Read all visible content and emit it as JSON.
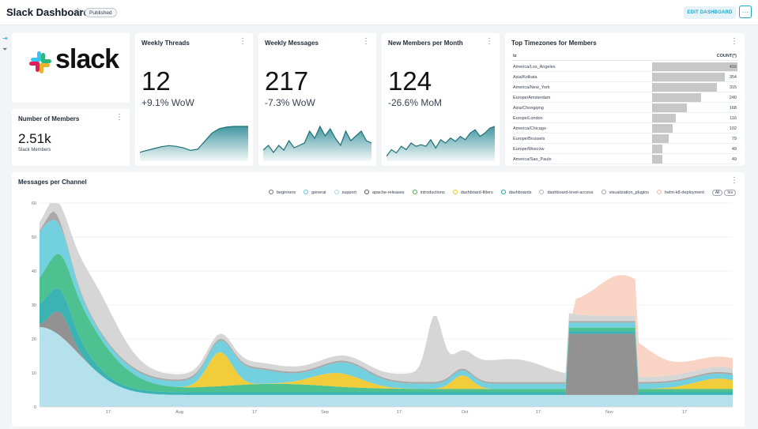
{
  "header": {
    "title": "Slack Dashboard",
    "status_badge": "Published",
    "edit_label": "EDIT DASHBOARD",
    "more_label": "···"
  },
  "logo": {
    "wordmark": "slack"
  },
  "members": {
    "title": "Number of Members",
    "value": "2.51k",
    "subtitle": "Slack Members"
  },
  "kpis": [
    {
      "title": "Weekly Threads",
      "value": "12",
      "delta": "+9.1% WoW",
      "trend": [
        2,
        2.5,
        3,
        3.5,
        3.8,
        3.6,
        3.2,
        2.5,
        2.8,
        5,
        7.2,
        8.4,
        8.8,
        9,
        9,
        9
      ]
    },
    {
      "title": "Weekly Messages",
      "value": "217",
      "delta": "-7.3% WoW",
      "trend": [
        2,
        3,
        1.5,
        3,
        2,
        4,
        2.5,
        3,
        3.5,
        6,
        4.5,
        7,
        5,
        6.5,
        4.5,
        3,
        6,
        4,
        5,
        6,
        4,
        3.5
      ]
    },
    {
      "title": "New Members per Month",
      "value": "124",
      "delta": "-26.6% MoM",
      "trend": [
        1,
        3,
        2,
        4,
        3,
        5,
        4,
        4.5,
        4,
        6,
        3.5,
        6,
        5,
        6.5,
        5.5,
        7,
        6,
        8,
        9,
        7,
        8,
        9.5,
        10
      ]
    }
  ],
  "timezones": {
    "title": "Top Timezones for Members",
    "col_tz": "tz",
    "col_count": "COUNT(*)",
    "rows": [
      {
        "tz": "America/Los_Angeles",
        "count": 416
      },
      {
        "tz": "Asia/Kolkata",
        "count": 354
      },
      {
        "tz": "America/New_York",
        "count": 315
      },
      {
        "tz": "Europe/Amsterdam",
        "count": 240
      },
      {
        "tz": "Asia/Chongqing",
        "count": 168
      },
      {
        "tz": "Europe/London",
        "count": 116
      },
      {
        "tz": "America/Chicago",
        "count": 102
      },
      {
        "tz": "Europe/Brussels",
        "count": 79
      },
      {
        "tz": "Europe/Moscow",
        "count": 49
      },
      {
        "tz": "America/Sao_Paulo",
        "count": 49
      }
    ]
  },
  "messages_chart": {
    "title": "Messages per Channel",
    "all_label": "All",
    "inv_label": "Inv"
  },
  "chart_data": {
    "type": "area",
    "stacked": true,
    "ylim": [
      0,
      60
    ],
    "yticks": [
      0,
      10,
      20,
      30,
      40,
      50,
      60
    ],
    "xtick_labels": [
      "17",
      "Aug",
      "17",
      "Sep",
      "17",
      "Oct",
      "17",
      "Nov",
      "17"
    ],
    "legend_position": "top-right",
    "series": [
      {
        "name": "beginners",
        "color": "#7f7f7f",
        "values": [
          14,
          10,
          6,
          4,
          2,
          0,
          0,
          0,
          0,
          0,
          0,
          0,
          0,
          0,
          0,
          0,
          0,
          0,
          0,
          0,
          0,
          0,
          0,
          0,
          0,
          0,
          0,
          0,
          0,
          0,
          0,
          0,
          0,
          0,
          0,
          0,
          0,
          0,
          0,
          0,
          0,
          0,
          0,
          0,
          0,
          0,
          0,
          0,
          0,
          0,
          0,
          0,
          0,
          0,
          0,
          0,
          0,
          0,
          0,
          0,
          0,
          0,
          0,
          0,
          0,
          0,
          0,
          0,
          0,
          0,
          0,
          0,
          0,
          0,
          0,
          0,
          0,
          0,
          0,
          0,
          0,
          0,
          0,
          0,
          0,
          0,
          0,
          0,
          0,
          0,
          0,
          0,
          0,
          0,
          0,
          0,
          0,
          0,
          0,
          0,
          0,
          0,
          0,
          0,
          0,
          0,
          0,
          0,
          0,
          0,
          0,
          0,
          0,
          0,
          0,
          0,
          0,
          0,
          0,
          0,
          0,
          0,
          0,
          0,
          0,
          0,
          0,
          0,
          0,
          0,
          0,
          0,
          0,
          0,
          0,
          0,
          0,
          0,
          0,
          0,
          0,
          0,
          0,
          0,
          0,
          0,
          0,
          0,
          0,
          0,
          0,
          0,
          0,
          0,
          0,
          0,
          0,
          0,
          0,
          0,
          0,
          0,
          0,
          0,
          0,
          0,
          0,
          0,
          0,
          0,
          0,
          0,
          0,
          0,
          0,
          0,
          22,
          22,
          20,
          18,
          15,
          12,
          0,
          0,
          0,
          0,
          0,
          0,
          0,
          0,
          0,
          0,
          0,
          0,
          0,
          0,
          0,
          0,
          0,
          0,
          0,
          0,
          0,
          0,
          0,
          0,
          0,
          0,
          0,
          0,
          0,
          0,
          0,
          0,
          0,
          0,
          0,
          0,
          0,
          0,
          0,
          0,
          0,
          0,
          0,
          0,
          0,
          0,
          0,
          0,
          0
        ]
      },
      {
        "name": "general",
        "color": "#5ac8d8",
        "values": [
          18,
          14,
          12,
          11,
          10,
          9,
          9,
          8.5,
          8,
          7.5,
          7,
          7,
          6.5,
          6,
          5.5,
          5,
          4.5,
          4,
          3.8,
          3.5,
          3.2,
          3,
          3,
          2.8,
          2.6,
          2.5,
          2.4,
          2.3,
          2.2,
          2.1,
          2,
          2,
          2,
          2,
          2,
          2,
          2,
          2,
          2,
          2,
          2,
          2,
          2,
          2,
          2,
          2,
          2,
          2,
          2,
          2,
          2,
          2,
          2,
          2,
          2,
          2,
          2,
          2,
          2,
          2,
          2,
          2,
          2,
          2,
          2,
          2,
          2,
          2,
          2,
          2,
          2,
          2,
          2,
          2,
          2,
          2,
          2,
          2,
          2,
          2,
          2,
          2,
          2,
          2,
          2,
          2,
          2,
          2,
          2,
          2,
          2,
          2,
          2,
          2,
          2,
          2,
          2,
          2,
          2,
          2,
          2,
          2,
          2,
          2,
          2,
          2,
          2,
          2,
          2,
          2,
          2,
          2,
          2,
          2,
          2,
          2,
          2,
          2,
          2,
          2,
          2,
          2,
          2,
          2,
          2,
          2,
          2,
          2,
          2,
          2,
          2,
          2,
          2,
          2,
          2,
          2,
          2,
          2,
          2,
          2,
          2,
          2,
          2,
          2,
          2,
          2,
          2,
          2,
          2,
          2,
          2,
          2,
          2,
          2,
          2,
          2,
          2,
          2,
          2,
          2,
          2,
          2,
          2,
          2,
          2,
          2,
          2,
          2,
          2,
          2,
          2,
          2,
          2,
          2,
          2,
          2,
          2,
          2,
          2,
          2,
          2,
          2,
          2,
          2,
          2,
          2,
          2,
          2,
          2,
          2,
          2,
          2,
          2,
          2,
          2,
          2,
          2,
          2,
          2,
          2,
          2,
          2,
          2,
          2,
          2,
          2,
          2,
          2,
          2,
          2,
          2,
          2,
          2,
          2,
          2,
          2,
          2
        ]
      },
      {
        "name": "support",
        "color": "#a8dcea",
        "values": [
          6,
          6,
          5,
          5,
          5,
          5,
          5,
          5,
          5,
          5,
          5,
          5,
          5,
          5,
          5,
          5,
          5,
          5,
          5,
          5,
          5,
          5,
          5,
          5,
          5,
          5,
          5,
          5,
          5,
          5,
          5,
          5,
          5,
          5,
          5,
          5,
          5,
          5,
          5,
          5,
          5,
          5,
          5,
          5,
          5,
          5,
          5,
          5,
          5,
          5,
          5,
          5,
          5,
          5,
          5,
          5,
          5,
          5,
          5,
          5,
          5,
          5,
          5,
          5,
          5,
          5,
          5,
          5,
          5,
          5,
          5,
          5,
          5,
          5,
          5,
          5,
          5,
          5,
          5,
          5,
          5,
          5,
          5,
          5,
          5,
          5,
          5,
          5,
          5,
          5,
          5,
          5,
          5,
          5,
          5,
          5,
          5,
          5,
          5,
          5,
          5,
          5,
          5,
          5,
          5,
          5,
          5,
          5,
          5,
          5,
          5,
          5,
          5,
          5,
          5,
          5,
          5,
          5,
          5,
          5,
          5,
          5,
          5,
          5,
          5,
          5,
          5,
          5,
          5,
          5,
          5,
          5,
          5,
          5,
          5,
          5,
          5,
          5,
          5,
          5,
          5,
          5,
          5,
          5,
          5,
          5,
          5,
          5,
          5,
          5,
          5,
          5,
          5,
          5,
          5,
          5,
          5,
          5,
          5,
          5,
          5,
          5,
          5,
          5,
          5,
          5,
          5,
          5,
          5,
          5,
          5,
          5,
          5,
          5,
          5,
          5,
          5,
          5,
          5,
          5,
          5,
          5,
          5,
          5,
          5,
          5,
          5,
          5,
          5,
          5,
          5,
          5,
          5,
          5,
          5,
          5,
          5,
          5,
          5,
          5,
          5,
          5,
          5,
          5,
          5,
          5,
          5,
          5,
          5,
          5,
          5,
          5
        ]
      }
    ]
  }
}
